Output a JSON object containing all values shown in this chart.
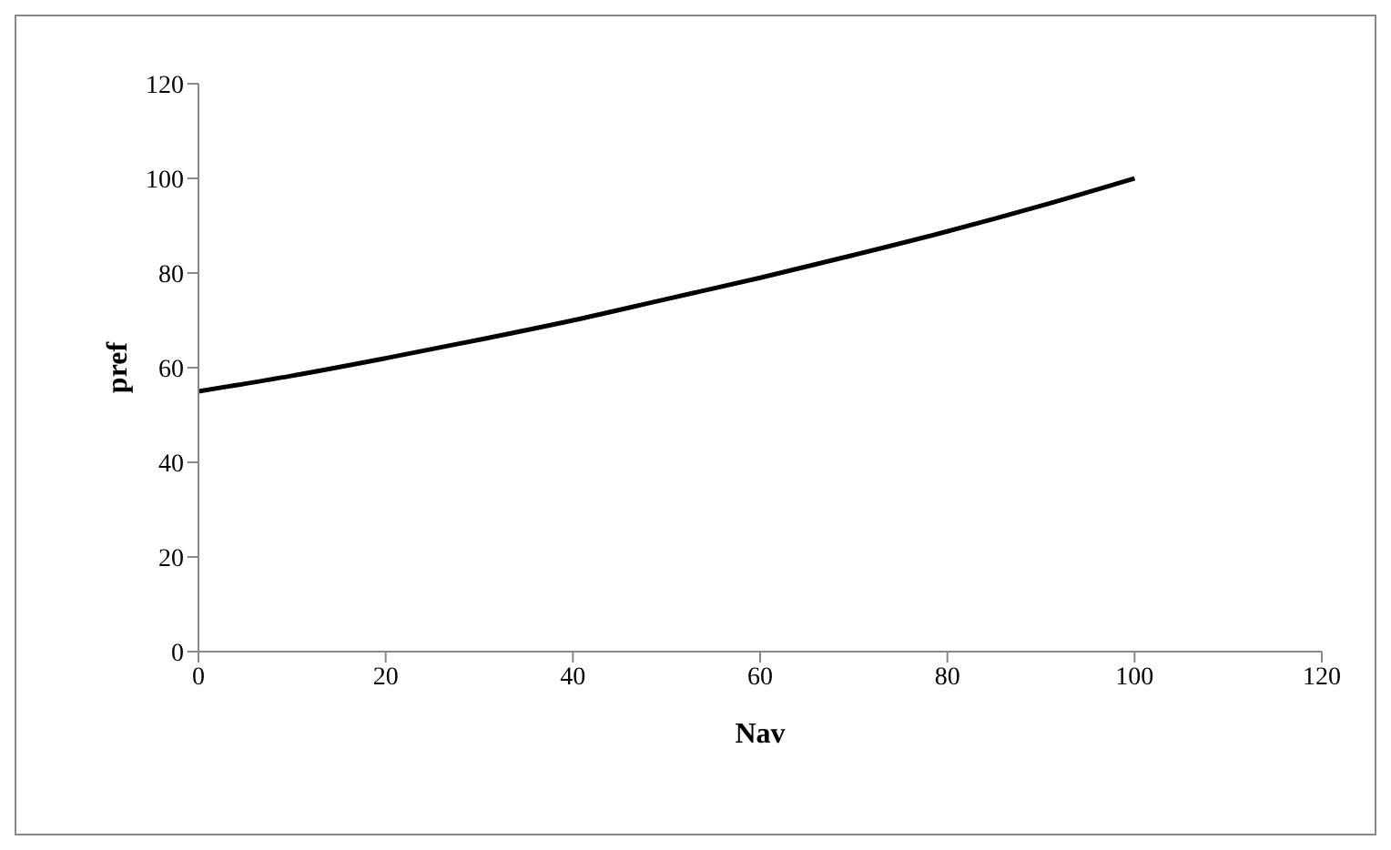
{
  "chart_data": {
    "type": "line",
    "xlabel": "Nav",
    "ylabel": "pref",
    "x": [
      0,
      10,
      20,
      30,
      40,
      50,
      60,
      70,
      80,
      90,
      100
    ],
    "series": [
      {
        "color": "#000000",
        "values": [
          55,
          58.3,
          62,
          65.9,
          70,
          74.5,
          79,
          83.8,
          88.8,
          94.2,
          100
        ]
      }
    ],
    "xlim": [
      0,
      120
    ],
    "xticks": [
      0,
      20,
      40,
      60,
      80,
      100,
      120
    ],
    "ylim": [
      0,
      120
    ],
    "yticks": [
      0,
      20,
      40,
      60,
      80,
      100,
      120
    ],
    "grid": false,
    "marker": "none",
    "line_style": "solid"
  }
}
